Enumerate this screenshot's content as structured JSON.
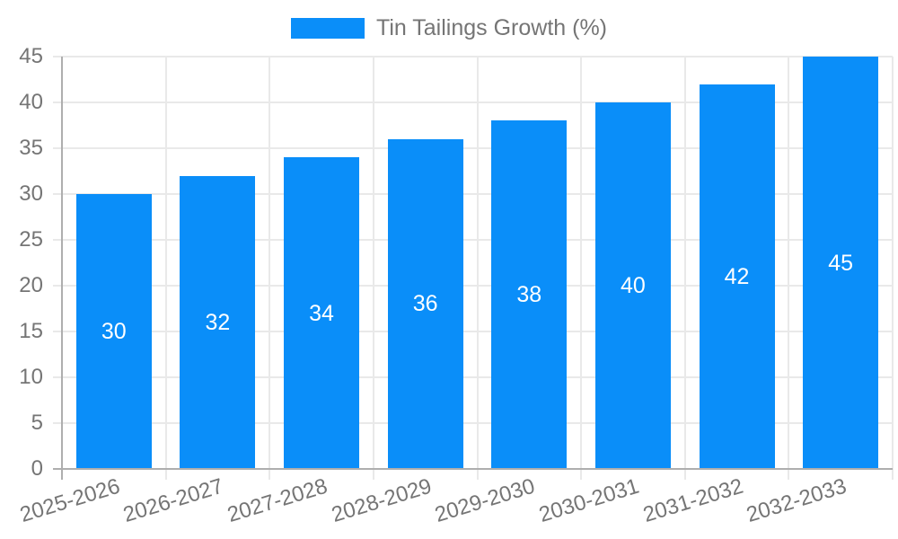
{
  "legend": {
    "label": "Tin Tailings Growth (%)"
  },
  "colors": {
    "bar": "#0a8ef9",
    "grid": "#e9e9e9",
    "axis": "#aeaeae",
    "tick_text": "#757575",
    "value_text": "#ffffff",
    "background": "#ffffff"
  },
  "chart_data": {
    "type": "bar",
    "title": "Tin Tailings Growth (%)",
    "categories": [
      "2025-2026",
      "2026-2027",
      "2027-2028",
      "2028-2029",
      "2029-2030",
      "2030-2031",
      "2031-2032",
      "2032-2033"
    ],
    "values": [
      30,
      32,
      34,
      36,
      38,
      40,
      42,
      45
    ],
    "value_labels": [
      "30",
      "32",
      "34",
      "36",
      "38",
      "40",
      "42",
      "45"
    ],
    "yticks": [
      0,
      5,
      10,
      15,
      20,
      25,
      30,
      35,
      40,
      45
    ],
    "ytick_labels": [
      "0",
      "5",
      "10",
      "15",
      "20",
      "25",
      "30",
      "35",
      "40",
      "45"
    ],
    "xlabel": "",
    "ylabel": "",
    "ylim": [
      0,
      45
    ],
    "grid": true,
    "legend_position": "top",
    "bar_value_labels_inside": true
  }
}
